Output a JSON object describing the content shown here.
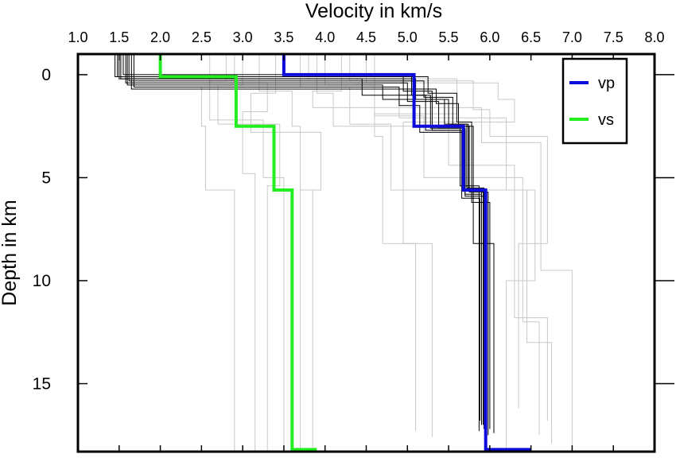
{
  "chart_data": {
    "type": "line",
    "title": "",
    "xlabel": "Velocity in km/s",
    "ylabel": "Depth in km",
    "x_axis_position": "top",
    "y_axis_inverted": true,
    "xlim": [
      1.0,
      8.0
    ],
    "ylim": [
      -1.0,
      18.3
    ],
    "x_ticks": [
      "1.0",
      "1.5",
      "2.0",
      "2.5",
      "3.0",
      "3.5",
      "4.0",
      "4.5",
      "5.0",
      "5.5",
      "6.0",
      "6.5",
      "7.0",
      "7.5",
      "8.0"
    ],
    "y_ticks": [
      "0",
      "5",
      "10",
      "15"
    ],
    "grid": false,
    "legend": {
      "position": "top-right",
      "entries": [
        "vp",
        "vs"
      ]
    },
    "series": [
      {
        "name": "vp",
        "color": "#0b0bdc",
        "step_profile": [
          {
            "depth": -1.0,
            "velocity": 3.5
          },
          {
            "depth": 0.0,
            "velocity": 3.5
          },
          {
            "depth": 0.0,
            "velocity": 5.08
          },
          {
            "depth": 2.5,
            "velocity": 5.08
          },
          {
            "depth": 2.5,
            "velocity": 5.68
          },
          {
            "depth": 5.6,
            "velocity": 5.68
          },
          {
            "depth": 5.6,
            "velocity": 5.95
          },
          {
            "depth": 18.2,
            "velocity": 5.95
          },
          {
            "depth": 18.2,
            "velocity": 6.5
          }
        ]
      },
      {
        "name": "vs",
        "color": "#22ee22",
        "step_profile": [
          {
            "depth": -1.0,
            "velocity": 2.0
          },
          {
            "depth": 0.1,
            "velocity": 2.0
          },
          {
            "depth": 0.1,
            "velocity": 2.92
          },
          {
            "depth": 2.5,
            "velocity": 2.92
          },
          {
            "depth": 2.5,
            "velocity": 3.38
          },
          {
            "depth": 5.6,
            "velocity": 3.38
          },
          {
            "depth": 5.6,
            "velocity": 3.6
          },
          {
            "depth": 18.2,
            "velocity": 3.6
          },
          {
            "depth": 18.2,
            "velocity": 3.9
          }
        ]
      }
    ],
    "ensemble": {
      "black_color": "#000000",
      "grey_color": "#c8c8c8",
      "black_vp_models": [
        [
          [
            -1,
            1.45
          ],
          [
            0.1,
            1.45
          ],
          [
            0.1,
            5.05
          ],
          [
            1.0,
            5.05
          ],
          [
            1.0,
            5.28
          ],
          [
            2.6,
            5.28
          ],
          [
            2.6,
            5.7
          ],
          [
            5.8,
            5.7
          ],
          [
            5.8,
            5.9
          ],
          [
            17.0,
            5.9
          ]
        ],
        [
          [
            -1,
            1.5
          ],
          [
            0.2,
            1.5
          ],
          [
            0.2,
            5.1
          ],
          [
            1.2,
            5.1
          ],
          [
            1.2,
            5.45
          ],
          [
            2.4,
            5.45
          ],
          [
            2.4,
            5.72
          ],
          [
            5.5,
            5.72
          ],
          [
            5.5,
            5.93
          ],
          [
            17.2,
            5.93
          ]
        ],
        [
          [
            -1,
            1.55
          ],
          [
            0.0,
            1.55
          ],
          [
            0.0,
            4.95
          ],
          [
            0.8,
            4.95
          ],
          [
            0.8,
            5.3
          ],
          [
            2.7,
            5.3
          ],
          [
            2.7,
            5.66
          ],
          [
            6.0,
            5.66
          ],
          [
            6.0,
            5.88
          ],
          [
            16.8,
            5.88
          ]
        ],
        [
          [
            -1,
            1.62
          ],
          [
            0.3,
            1.62
          ],
          [
            0.3,
            5.2
          ],
          [
            1.1,
            5.2
          ],
          [
            1.1,
            5.55
          ],
          [
            2.5,
            5.55
          ],
          [
            2.5,
            5.75
          ],
          [
            5.7,
            5.75
          ],
          [
            5.7,
            5.98
          ],
          [
            17.5,
            5.98
          ]
        ],
        [
          [
            -1,
            1.68
          ],
          [
            0.6,
            1.68
          ],
          [
            0.6,
            4.9
          ],
          [
            1.5,
            4.9
          ],
          [
            1.5,
            5.15
          ],
          [
            2.8,
            5.15
          ],
          [
            2.8,
            5.68
          ],
          [
            5.6,
            5.68
          ],
          [
            5.6,
            5.92
          ],
          [
            17.0,
            5.92
          ]
        ],
        [
          [
            -1,
            1.48
          ],
          [
            0.1,
            1.48
          ],
          [
            0.1,
            5.25
          ],
          [
            0.9,
            5.25
          ],
          [
            0.9,
            5.6
          ],
          [
            2.3,
            5.6
          ],
          [
            2.3,
            5.78
          ],
          [
            6.2,
            5.78
          ],
          [
            6.2,
            6.0
          ],
          [
            17.2,
            6.0
          ]
        ],
        [
          [
            -1,
            1.58
          ],
          [
            0.4,
            1.58
          ],
          [
            0.4,
            5.0
          ],
          [
            1.3,
            5.0
          ],
          [
            1.3,
            5.38
          ],
          [
            2.6,
            5.38
          ],
          [
            2.6,
            5.64
          ],
          [
            5.4,
            5.64
          ],
          [
            5.4,
            5.87
          ],
          [
            17.3,
            5.87
          ]
        ],
        [
          [
            -1,
            1.65
          ],
          [
            0.7,
            1.65
          ],
          [
            0.7,
            5.35
          ],
          [
            1.4,
            5.35
          ],
          [
            1.4,
            5.62
          ],
          [
            2.5,
            5.62
          ],
          [
            2.5,
            5.8
          ],
          [
            8.2,
            5.8
          ],
          [
            8.2,
            6.05
          ],
          [
            17.4,
            6.05
          ]
        ],
        [
          [
            -1,
            1.52
          ],
          [
            0.2,
            1.52
          ],
          [
            0.2,
            4.45
          ],
          [
            1.0,
            4.45
          ],
          [
            1.0,
            5.22
          ],
          [
            2.7,
            5.22
          ],
          [
            2.7,
            5.7
          ],
          [
            5.9,
            5.7
          ],
          [
            5.9,
            5.96
          ],
          [
            17.1,
            5.96
          ]
        ],
        [
          [
            -1,
            1.6
          ],
          [
            0.5,
            1.6
          ],
          [
            0.5,
            4.7
          ],
          [
            1.2,
            4.7
          ],
          [
            1.2,
            5.5
          ],
          [
            2.4,
            5.5
          ],
          [
            2.4,
            5.74
          ],
          [
            5.6,
            5.74
          ],
          [
            5.6,
            5.9
          ],
          [
            17.0,
            5.9
          ]
        ]
      ],
      "grey_vp_models": [
        [
          [
            -1,
            4.0
          ],
          [
            0.5,
            4.0
          ],
          [
            0.5,
            4.6
          ],
          [
            2.0,
            4.6
          ],
          [
            2.0,
            5.2
          ],
          [
            5.0,
            5.2
          ],
          [
            5.0,
            6.4
          ],
          [
            12.0,
            6.4
          ],
          [
            12.0,
            6.6
          ],
          [
            17.5,
            6.6
          ]
        ],
        [
          [
            -1,
            3.7
          ],
          [
            0.6,
            3.7
          ],
          [
            0.6,
            4.3
          ],
          [
            2.4,
            4.3
          ],
          [
            2.4,
            4.8
          ],
          [
            5.6,
            4.8
          ],
          [
            5.6,
            6.55
          ],
          [
            10.0,
            6.55
          ],
          [
            10.0,
            6.2
          ],
          [
            18.3,
            6.2
          ]
        ],
        [
          [
            -1,
            4.3
          ],
          [
            0.3,
            4.3
          ],
          [
            0.3,
            5.8
          ],
          [
            1.7,
            5.8
          ],
          [
            1.7,
            6.0
          ],
          [
            3.0,
            6.0
          ],
          [
            3.0,
            6.7
          ],
          [
            8.2,
            6.7
          ],
          [
            8.2,
            6.35
          ],
          [
            16.2,
            6.35
          ]
        ],
        [
          [
            -1,
            3.9
          ],
          [
            0.9,
            3.9
          ],
          [
            0.9,
            4.1
          ],
          [
            2.5,
            4.1
          ],
          [
            2.5,
            5.5
          ],
          [
            4.4,
            5.5
          ],
          [
            4.4,
            6.3
          ],
          [
            11.8,
            6.3
          ],
          [
            11.8,
            6.7
          ],
          [
            16.8,
            6.7
          ]
        ],
        [
          [
            -1,
            4.5
          ],
          [
            0.4,
            4.5
          ],
          [
            0.4,
            6.1
          ],
          [
            1.2,
            6.1
          ],
          [
            1.2,
            6.3
          ],
          [
            2.3,
            6.3
          ],
          [
            2.3,
            4.95
          ],
          [
            8.2,
            4.95
          ],
          [
            8.2,
            5.3
          ],
          [
            17.6,
            5.3
          ]
        ],
        [
          [
            -1,
            4.2
          ],
          [
            0.8,
            4.2
          ],
          [
            0.8,
            3.85
          ],
          [
            1.6,
            3.85
          ],
          [
            1.6,
            5.9
          ],
          [
            3.3,
            5.9
          ],
          [
            3.3,
            6.62
          ],
          [
            9.5,
            6.62
          ],
          [
            9.5,
            7.0
          ],
          [
            18.3,
            7.0
          ]
        ],
        [
          [
            -1,
            3.8
          ],
          [
            0.2,
            3.8
          ],
          [
            0.2,
            5.6
          ],
          [
            1.9,
            5.6
          ],
          [
            1.9,
            4.6
          ],
          [
            3.0,
            4.6
          ],
          [
            3.0,
            4.7
          ],
          [
            8.2,
            4.7
          ],
          [
            8.2,
            5.1
          ],
          [
            17.3,
            5.1
          ]
        ],
        [
          [
            -1,
            4.6
          ],
          [
            0.7,
            4.6
          ],
          [
            0.7,
            4.9
          ],
          [
            2.1,
            4.9
          ],
          [
            2.1,
            6.2
          ],
          [
            5.6,
            6.2
          ],
          [
            5.6,
            6.45
          ],
          [
            13.0,
            6.45
          ],
          [
            13.0,
            6.75
          ],
          [
            17.9,
            6.75
          ]
        ]
      ],
      "grey_vs_models": [
        [
          [
            -1,
            2.6
          ],
          [
            0.6,
            2.6
          ],
          [
            0.6,
            2.5
          ],
          [
            2.5,
            2.5
          ],
          [
            2.5,
            2.55
          ],
          [
            5.6,
            2.55
          ],
          [
            5.6,
            2.9
          ],
          [
            18.3,
            2.9
          ]
        ],
        [
          [
            -1,
            2.9
          ],
          [
            0.4,
            2.9
          ],
          [
            0.4,
            3.3
          ],
          [
            1.8,
            3.3
          ],
          [
            1.8,
            3.0
          ],
          [
            4.8,
            3.0
          ],
          [
            4.8,
            3.15
          ],
          [
            18.3,
            3.15
          ]
        ],
        [
          [
            -1,
            3.2
          ],
          [
            0.8,
            3.2
          ],
          [
            0.8,
            3.6
          ],
          [
            2.5,
            3.6
          ],
          [
            2.5,
            3.7
          ],
          [
            5.6,
            3.7
          ],
          [
            5.6,
            3.85
          ],
          [
            18.3,
            3.85
          ]
        ],
        [
          [
            -1,
            2.8
          ],
          [
            0.3,
            2.8
          ],
          [
            0.3,
            2.6
          ],
          [
            2.2,
            2.6
          ],
          [
            2.2,
            3.25
          ],
          [
            5.0,
            3.25
          ],
          [
            5.0,
            3.5
          ],
          [
            18.3,
            3.5
          ]
        ],
        [
          [
            -1,
            3.4
          ],
          [
            0.9,
            3.4
          ],
          [
            0.9,
            3.1
          ],
          [
            2.8,
            3.1
          ],
          [
            2.8,
            3.95
          ],
          [
            5.6,
            3.95
          ],
          [
            5.6,
            3.7
          ],
          [
            18.3,
            3.7
          ]
        ],
        [
          [
            -1,
            3.0
          ],
          [
            0.5,
            3.0
          ],
          [
            0.5,
            2.7
          ],
          [
            2.4,
            2.7
          ],
          [
            2.4,
            3.45
          ],
          [
            5.4,
            3.45
          ],
          [
            5.4,
            3.3
          ],
          [
            18.3,
            3.3
          ]
        ]
      ]
    }
  }
}
